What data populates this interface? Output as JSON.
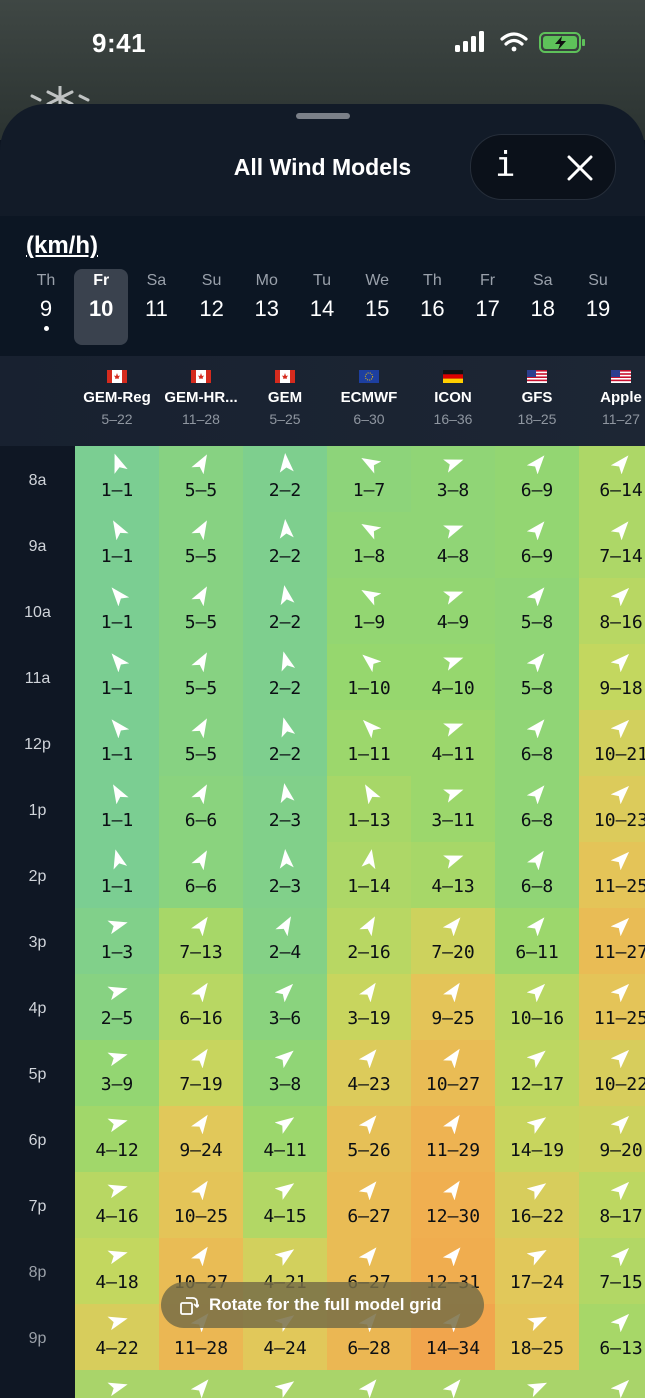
{
  "status": {
    "time": "9:41"
  },
  "sheet": {
    "title": "All Wind Models",
    "info_label": "i"
  },
  "units": "(km/h)",
  "days": [
    {
      "name": "Th",
      "num": "9",
      "today": true
    },
    {
      "name": "Fr",
      "num": "10",
      "selected": true
    },
    {
      "name": "Sa",
      "num": "11"
    },
    {
      "name": "Su",
      "num": "12"
    },
    {
      "name": "Mo",
      "num": "13"
    },
    {
      "name": "Tu",
      "num": "14"
    },
    {
      "name": "We",
      "num": "15"
    },
    {
      "name": "Th",
      "num": "16"
    },
    {
      "name": "Fr",
      "num": "17"
    },
    {
      "name": "Sa",
      "num": "18"
    },
    {
      "name": "Su",
      "num": "19"
    }
  ],
  "models": [
    {
      "name": "GEM-Reg",
      "range": "5–22",
      "flag": "CA"
    },
    {
      "name": "GEM-HR...",
      "range": "11–28",
      "flag": "CA"
    },
    {
      "name": "GEM",
      "range": "5–25",
      "flag": "CA"
    },
    {
      "name": "ECMWF",
      "range": "6–30",
      "flag": "EU"
    },
    {
      "name": "ICON",
      "range": "16–36",
      "flag": "DE"
    },
    {
      "name": "GFS",
      "range": "18–25",
      "flag": "US"
    },
    {
      "name": "Apple",
      "range": "11–27",
      "flag": "US"
    }
  ],
  "times": [
    "8a",
    "9a",
    "10a",
    "11a",
    "12p",
    "1p",
    "2p",
    "3p",
    "4p",
    "5p",
    "6p",
    "7p",
    "8p",
    "9p"
  ],
  "rows": [
    {
      "values": [
        "1–1",
        "5–5",
        "2–2",
        "1–7",
        "3–8",
        "6–9",
        "6–14"
      ],
      "dirs": [
        340,
        30,
        355,
        300,
        70,
        40,
        40
      ]
    },
    {
      "values": [
        "1–1",
        "5–5",
        "2–2",
        "1–8",
        "4–8",
        "6–9",
        "7–14"
      ],
      "dirs": [
        330,
        30,
        355,
        300,
        70,
        40,
        40
      ]
    },
    {
      "values": [
        "1–1",
        "5–5",
        "2–2",
        "1–9",
        "4–9",
        "5–8",
        "8–16"
      ],
      "dirs": [
        320,
        30,
        350,
        300,
        70,
        40,
        45
      ]
    },
    {
      "values": [
        "1–1",
        "5–5",
        "2–2",
        "1–10",
        "4–10",
        "5–8",
        "9–18"
      ],
      "dirs": [
        320,
        30,
        345,
        310,
        70,
        40,
        45
      ]
    },
    {
      "values": [
        "1–1",
        "5–5",
        "2–2",
        "1–11",
        "4–11",
        "6–8",
        "10–21"
      ],
      "dirs": [
        320,
        30,
        345,
        315,
        70,
        40,
        45
      ]
    },
    {
      "values": [
        "1–1",
        "6–6",
        "2–3",
        "1–13",
        "3–11",
        "6–8",
        "10–23"
      ],
      "dirs": [
        330,
        30,
        350,
        330,
        70,
        40,
        45
      ]
    },
    {
      "values": [
        "1–1",
        "6–6",
        "2–3",
        "1–14",
        "4–13",
        "6–8",
        "11–25"
      ],
      "dirs": [
        345,
        30,
        355,
        10,
        70,
        35,
        45
      ]
    },
    {
      "values": [
        "1–3",
        "7–13",
        "2–4",
        "2–16",
        "7–20",
        "6–11",
        "11–27"
      ],
      "dirs": [
        75,
        35,
        30,
        30,
        40,
        40,
        45
      ]
    },
    {
      "values": [
        "2–5",
        "6–16",
        "3–6",
        "3–19",
        "9–25",
        "10–16",
        "11–25"
      ],
      "dirs": [
        75,
        35,
        45,
        35,
        35,
        45,
        45
      ]
    },
    {
      "values": [
        "3–9",
        "7–19",
        "3–8",
        "4–23",
        "10–27",
        "12–17",
        "10–22"
      ],
      "dirs": [
        75,
        35,
        50,
        40,
        35,
        50,
        45
      ]
    },
    {
      "values": [
        "4–12",
        "9–24",
        "4–11",
        "5–26",
        "11–29",
        "14–19",
        "9–20"
      ],
      "dirs": [
        75,
        35,
        55,
        40,
        35,
        55,
        45
      ]
    },
    {
      "values": [
        "4–16",
        "10–25",
        "4–15",
        "6–27",
        "12–30",
        "16–22",
        "8–17"
      ],
      "dirs": [
        75,
        35,
        55,
        40,
        35,
        55,
        45
      ]
    },
    {
      "values": [
        "4–18",
        "10–27",
        "4–21",
        "6–27",
        "12–31",
        "17–24",
        "7–15"
      ],
      "dirs": [
        75,
        35,
        55,
        40,
        40,
        60,
        45
      ]
    },
    {
      "values": [
        "4–22",
        "11–28",
        "4–24",
        "6–28",
        "14–34",
        "18–25",
        "6–13"
      ],
      "dirs": [
        75,
        40,
        55,
        40,
        40,
        65,
        45
      ]
    },
    {
      "values": [
        "",
        "",
        "",
        "",
        "",
        "",
        ""
      ],
      "dirs": [
        75,
        40,
        55,
        40,
        40,
        65,
        45
      ]
    }
  ],
  "colors": {
    "green": "#7fcf93",
    "lime": "#a6d86a",
    "yellow": "#dccb5e",
    "orange": "#eeb253",
    "deep_orange": "#f0a84e"
  },
  "toast": {
    "text": "Rotate for the full model grid"
  }
}
